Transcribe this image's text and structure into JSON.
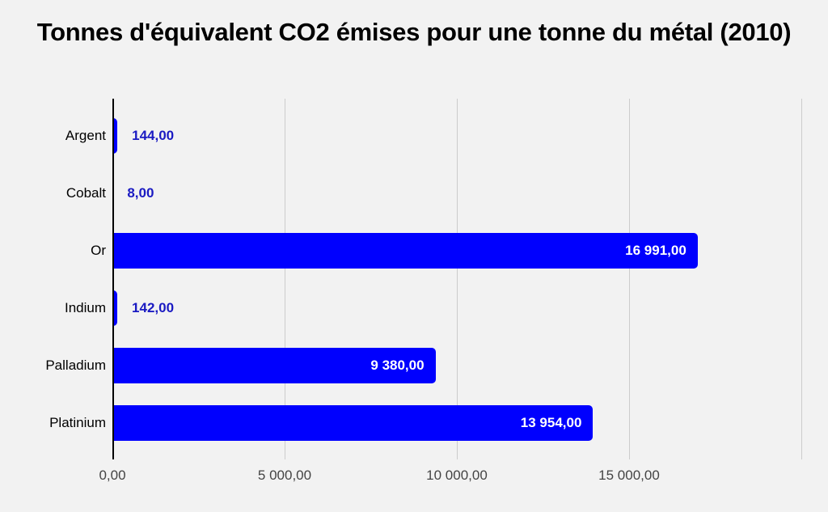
{
  "chart_data": {
    "type": "bar",
    "orientation": "horizontal",
    "title": "Tonnes d'équivalent CO2 émises pour une tonne du métal (2010)",
    "categories": [
      "Argent",
      "Cobalt",
      "Or",
      "Indium",
      "Palladium",
      "Platinium"
    ],
    "values": [
      144,
      8,
      16991,
      142,
      9380,
      13954
    ],
    "value_labels": [
      "144,00",
      "8,00",
      "16 991,00",
      "142,00",
      "9 380,00",
      "13 954,00"
    ],
    "x_ticks": [
      {
        "value": 0,
        "label": "0,00"
      },
      {
        "value": 5000,
        "label": "5 000,00"
      },
      {
        "value": 10000,
        "label": "10 000,00"
      },
      {
        "value": 15000,
        "label": "15 000,00"
      },
      {
        "value": 20000,
        "label": ""
      }
    ],
    "xlim": [
      0,
      20000
    ],
    "grid": true,
    "legend": "none",
    "colors": {
      "bar": "#0000fe",
      "value_label_inside": "#ffffff",
      "value_label_outside": "#1a1ac2",
      "category_text": "#000000",
      "axis_text": "#444444",
      "axis_line": "#000000",
      "gridline": "#cccccc",
      "background": "#f2f2f2",
      "title_text": "#000000"
    }
  }
}
